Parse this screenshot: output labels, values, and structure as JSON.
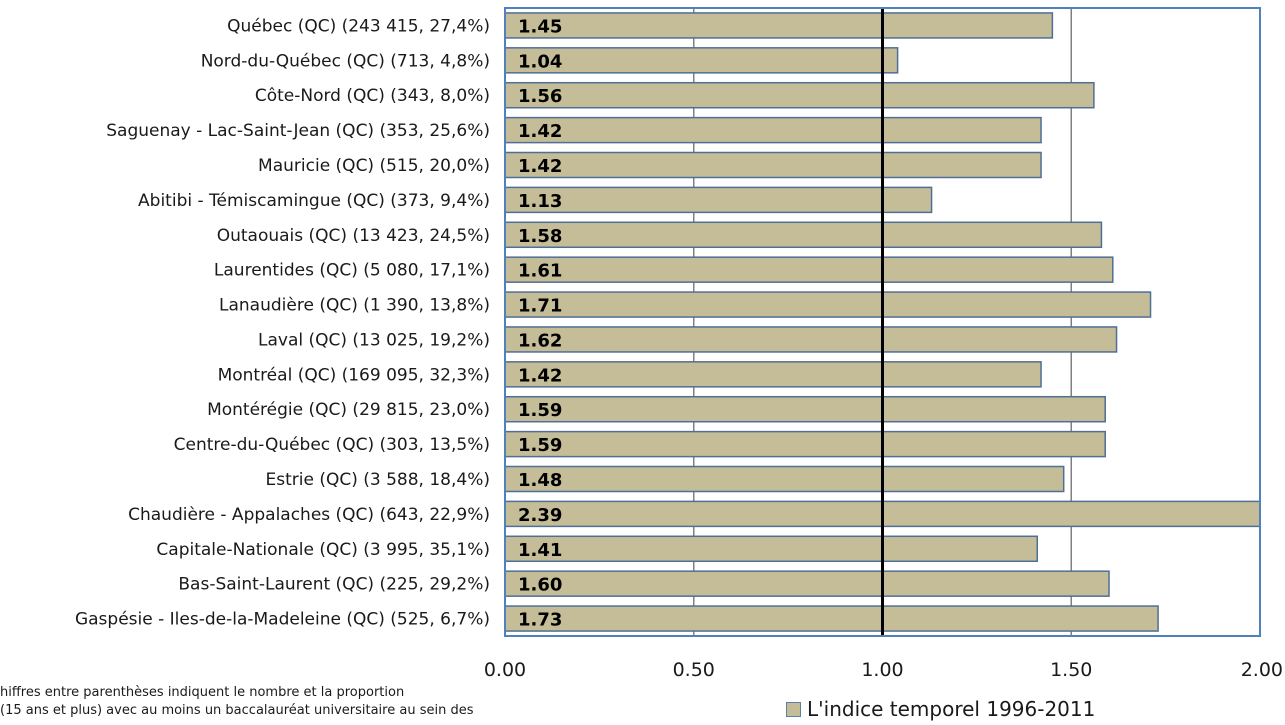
{
  "chart_data": {
    "type": "bar",
    "orientation": "horizontal",
    "categories": [
      "Québec (QC) (243 415, 27,4%)",
      "Nord-du-Québec (QC) (713, 4,8%)",
      "Côte-Nord (QC) (343, 8,0%)",
      "Saguenay - Lac-Saint-Jean (QC) (353, 25,6%)",
      "Mauricie (QC) (515, 20,0%)",
      "Abitibi - Témiscamingue (QC) (373, 9,4%)",
      "Outaouais (QC) (13 423, 24,5%)",
      "Laurentides (QC) (5 080, 17,1%)",
      "Lanaudière (QC) (1 390, 13,8%)",
      "Laval (QC) (13 025, 19,2%)",
      "Montréal (QC) (169 095, 32,3%)",
      "Montérégie (QC) (29 815, 23,0%)",
      "Centre-du-Québec (QC) (303, 13,5%)",
      "Estrie (QC) (3 588, 18,4%)",
      "Chaudière - Appalaches (QC) (643, 22,9%)",
      "Capitale-Nationale (QC) (3 995, 35,1%)",
      "Bas-Saint-Laurent (QC) (225, 29,2%)",
      "Gaspésie - Iles-de-la-Madeleine (QC) (525, 6,7%)"
    ],
    "values": [
      1.45,
      1.04,
      1.56,
      1.42,
      1.42,
      1.13,
      1.58,
      1.61,
      1.71,
      1.62,
      1.42,
      1.59,
      1.59,
      1.48,
      2.39,
      1.41,
      1.6,
      1.73
    ],
    "data_labels": [
      "1.45",
      "1.04",
      "1.56",
      "1.42",
      "1.42",
      "1.13",
      "1.58",
      "1.61",
      "1.71",
      "1.62",
      "1.42",
      "1.59",
      "1.59",
      "1.48",
      "2.39",
      "1.41",
      "1.60",
      "1.73"
    ],
    "series": [
      {
        "name": "L'indice temporel 1996-2011"
      }
    ],
    "xlim": [
      0,
      2
    ],
    "x_ticks": [
      "0.00",
      "0.50",
      "1.00",
      "1.50",
      "2.00"
    ],
    "reference_line": 1.0,
    "grid": true,
    "legend_position": "bottom-right",
    "colors": {
      "bar_fill": "#c4bd97",
      "bar_stroke": "#4f6f96",
      "plot_border": "#4f81bd",
      "gridline": "#808080",
      "reference_line": "#000000"
    }
  },
  "legend": {
    "label": "L'indice temporel 1996-2011"
  },
  "footnote": {
    "line1": "hiffres entre parenthèses indiquent le nombre et la proportion",
    "line2": "(15 ans et plus) avec au moins un baccalauréat universitaire au sein des"
  }
}
